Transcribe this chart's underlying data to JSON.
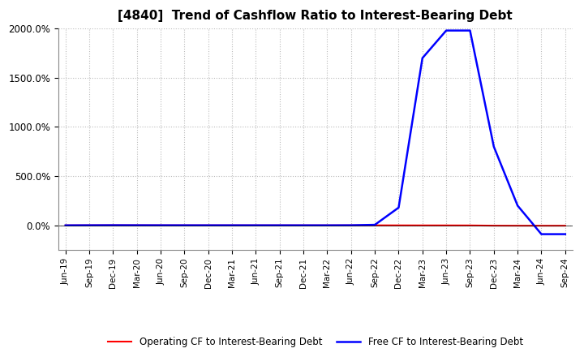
{
  "title": "[4840]  Trend of Cashflow Ratio to Interest-Bearing Debt",
  "x_labels": [
    "Jun-19",
    "Sep-19",
    "Dec-19",
    "Mar-20",
    "Jun-20",
    "Sep-20",
    "Dec-20",
    "Mar-21",
    "Jun-21",
    "Sep-21",
    "Dec-21",
    "Mar-22",
    "Jun-22",
    "Sep-22",
    "Dec-22",
    "Mar-23",
    "Jun-23",
    "Sep-23",
    "Dec-23",
    "Mar-24",
    "Jun-24",
    "Sep-24"
  ],
  "operating_cf": [
    -0.5,
    0.2,
    0.8,
    0.4,
    0.1,
    -0.05,
    -0.15,
    -0.1,
    -0.2,
    -0.25,
    -0.3,
    -0.4,
    -0.15,
    -0.1,
    -0.5,
    -0.8,
    -0.9,
    -1.2,
    -3.5,
    -4.0,
    -4.2,
    -4.0
  ],
  "free_cf": [
    -0.5,
    0.2,
    0.8,
    0.4,
    0.1,
    -0.05,
    -0.15,
    -0.1,
    -0.2,
    -0.25,
    -0.3,
    -0.4,
    0.3,
    5.0,
    180.0,
    1700.0,
    1980.0,
    1980.0,
    800.0,
    200.0,
    -90.0,
    -90.0
  ],
  "ylim": [
    -250,
    2000
  ],
  "ytick_vals": [
    0,
    500,
    1000,
    1500,
    2000
  ],
  "ytick_labels": [
    "0.0%",
    "500.0%",
    "1000.0%",
    "1500.0%",
    "2000.0%"
  ],
  "operating_color": "#ff0000",
  "free_color": "#0000ff",
  "background_color": "#ffffff",
  "grid_color": "#bbbbbb",
  "title_fontsize": 11,
  "legend_operating": "Operating CF to Interest-Bearing Debt",
  "legend_free": "Free CF to Interest-Bearing Debt"
}
